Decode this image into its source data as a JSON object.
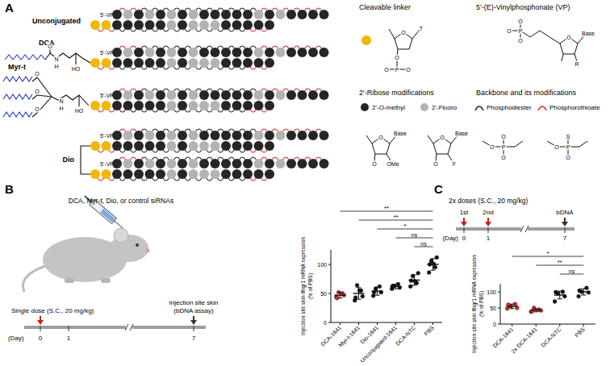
{
  "panel_labels": [
    "A",
    "B",
    "C"
  ],
  "diagram": {
    "vp_label": "5'-VP",
    "constructs": [
      {
        "label": "Unconjugated"
      },
      {
        "label": "DCA",
        "structure_texts": [
          "O",
          "N",
          "H",
          "HO"
        ]
      },
      {
        "label": "Myr-t",
        "structure_texts": [
          "O",
          "O",
          "O",
          "N",
          "H",
          "HO"
        ]
      },
      {
        "label": "Dio"
      }
    ],
    "legend": {
      "cleavable": {
        "title": "Cleavable linker",
        "texts": [
          "O",
          "T",
          "O",
          "P",
          "O",
          "O"
        ]
      },
      "vp": {
        "title": "5'-(E)-Vinylphosphonate (VP)",
        "texts": [
          "O",
          "P",
          "O",
          "O",
          "Base",
          "O",
          "R"
        ]
      },
      "ribose": {
        "title": "2'-Ribose modifications",
        "items": [
          {
            "label": "2'-O-methyl",
            "texts": [
              "O",
              "Base",
              "O",
              "OMe"
            ]
          },
          {
            "label": "2'-Fluoro",
            "texts": [
              "O",
              "Base",
              "O",
              "F"
            ]
          }
        ]
      },
      "backbone": {
        "title": "Backbone and its modifications",
        "items": [
          {
            "label": "Phosphodiester",
            "texts": [
              "O",
              "P",
              "O",
              "O"
            ]
          },
          {
            "label": "Phosphorothioate",
            "texts": [
              "O",
              "P",
              "S",
              "O"
            ]
          }
        ]
      }
    }
  },
  "illustration_text": "DCA, Myr-t, Dio, or control siRNAs",
  "timelines": [
    {
      "day_label": "(Day)",
      "days": [
        "0",
        "1",
        "7"
      ],
      "events": [
        {
          "text": [
            "Single dose (S.C., 20 mg/kg)"
          ],
          "day": "0",
          "color": "#c8201e"
        },
        {
          "text": [
            "Injection site skin",
            "(bDNA assay)"
          ],
          "day": "7",
          "color": "#333333"
        }
      ]
    },
    {
      "title": "2x doses (S.C., 20 mg/kg)",
      "day_label": "(Day)",
      "days": [
        "0",
        "1",
        "7"
      ],
      "events": [
        {
          "text": [
            "1st"
          ],
          "day": "0",
          "color": "#c8201e"
        },
        {
          "text": [
            "2nd"
          ],
          "day": "1",
          "color": "#c8201e"
        },
        {
          "text": [
            "bDNA"
          ],
          "day": "7",
          "color": "#333333"
        }
      ]
    }
  ],
  "chart_data": [
    {
      "type": "dot",
      "ylabel": [
        "Injection site skin Ifngr1 mRNA expression",
        "(% of PBS)"
      ],
      "categories": [
        "DCA-1641",
        "Myr-t-1641",
        "Dio-1641",
        "Unconjugated-1641",
        "DCA-NTC",
        "PBS"
      ],
      "values": [
        47,
        50,
        54,
        62,
        73,
        100
      ],
      "errors": [
        5,
        10,
        7,
        4,
        9,
        10
      ],
      "points": [
        [
          44,
          50,
          52,
          47,
          42
        ],
        [
          38,
          55,
          64,
          45,
          43,
          55
        ],
        [
          46,
          62,
          58,
          52,
          52
        ],
        [
          58,
          66,
          63,
          60,
          63
        ],
        [
          62,
          68,
          80,
          85,
          72,
          71
        ],
        [
          86,
          95,
          106,
          112,
          100,
          101
        ]
      ],
      "colors": [
        "#d9302a",
        "#111111",
        "#111111",
        "#111111",
        "#111111",
        "#111111"
      ],
      "ylim": [
        0,
        125
      ],
      "yticks": [
        0,
        50,
        100
      ],
      "grid": false,
      "annotations": [
        {
          "from": "DCA-1641",
          "to": "PBS",
          "label": "**"
        },
        {
          "from": "Myr-t-1641",
          "to": "PBS",
          "label": "**"
        },
        {
          "from": "Dio-1641",
          "to": "PBS",
          "label": "*"
        },
        {
          "from": "Unconjugated-1641",
          "to": "PBS",
          "label": "ns"
        },
        {
          "from": "DCA-NTC",
          "to": "PBS",
          "label": "ns"
        }
      ]
    },
    {
      "type": "dot",
      "ylabel": [
        "Injection site skin Ifngr1 mRNA expression",
        "(% of PBS)"
      ],
      "categories": [
        "DCA-1641",
        "2x DCA-1641",
        "DCA-NTC",
        "PBS"
      ],
      "values": [
        55,
        43,
        90,
        100
      ],
      "errors": [
        7,
        5,
        12,
        10
      ],
      "points": [
        [
          48,
          62,
          55,
          50,
          60
        ],
        [
          38,
          45,
          50,
          42,
          40
        ],
        [
          70,
          100,
          95,
          86,
          99
        ],
        [
          86,
          112,
          100,
          98,
          104
        ]
      ],
      "colors": [
        "#d9302a",
        "#d9302a",
        "#111111",
        "#111111"
      ],
      "ylim": [
        0,
        125
      ],
      "yticks": [
        0,
        50,
        100
      ],
      "grid": false,
      "annotations": [
        {
          "from": "DCA-1641",
          "to": "PBS",
          "label": "*"
        },
        {
          "from": "2x DCA-1641",
          "to": "PBS",
          "label": "**"
        },
        {
          "from": "DCA-NTC",
          "to": "PBS",
          "label": "ns"
        }
      ]
    }
  ]
}
